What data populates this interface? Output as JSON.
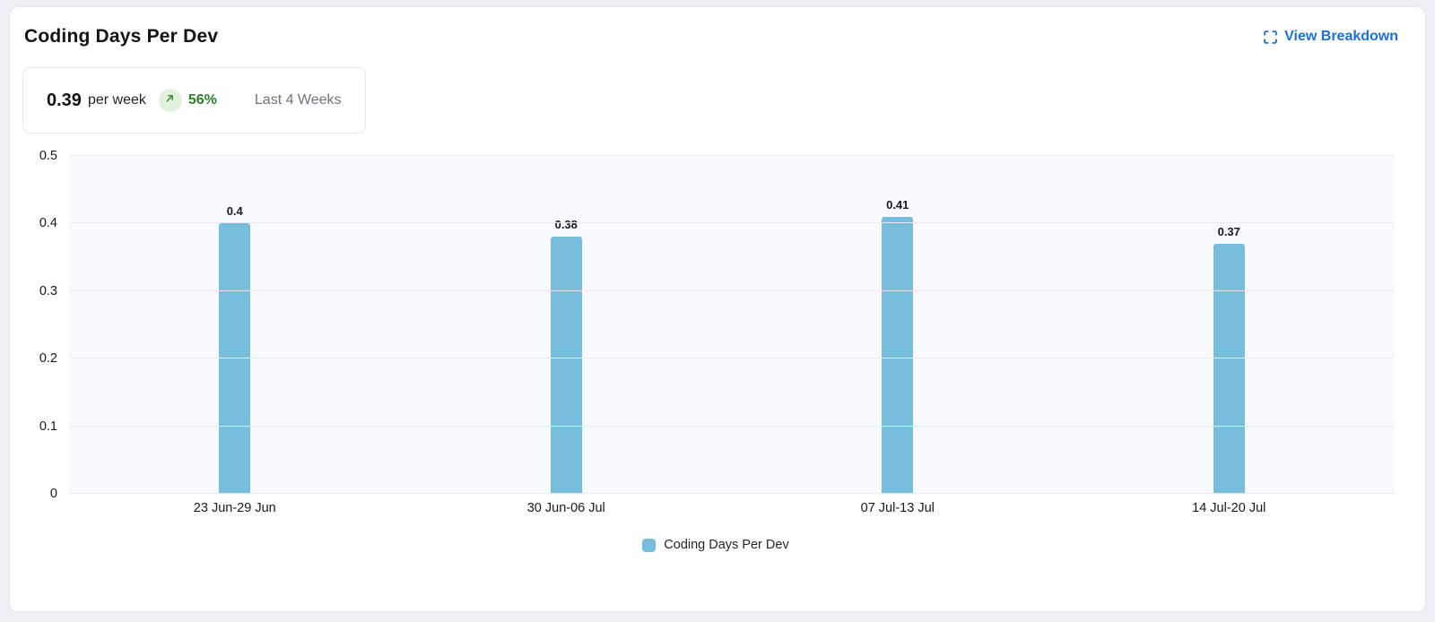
{
  "header": {
    "title": "Coding Days Per Dev",
    "view_breakdown_label": "View Breakdown"
  },
  "summary": {
    "value": "0.39",
    "unit": "per week",
    "trend_icon": "arrow-up-right",
    "change_pct": "56%",
    "period": "Last 4 Weeks"
  },
  "colors": {
    "bar": "#77bedd",
    "link_blue": "#1d6fd8",
    "badge_green_bg": "#e3f2df",
    "badge_green_fg": "#2e7d2a",
    "plot_bg": "#f9fafd",
    "gridline": "#e9ebf0",
    "card_border": "#e5e7ec"
  },
  "chart_data": {
    "type": "bar",
    "title": "Coding Days Per Dev",
    "categories": [
      "23 Jun-29 Jun",
      "30 Jun-06 Jul",
      "07 Jul-13 Jul",
      "14 Jul-20 Jul"
    ],
    "values": [
      0.4,
      0.38,
      0.41,
      0.37
    ],
    "value_labels": [
      "0.4",
      "0.38",
      "0.41",
      "0.37"
    ],
    "xlabel": "",
    "ylabel": "",
    "ylim": [
      0,
      0.5
    ],
    "yticks": [
      0,
      0.1,
      0.2,
      0.3,
      0.4,
      0.5
    ],
    "ytick_labels": [
      "0",
      "0.1",
      "0.2",
      "0.3",
      "0.4",
      "0.5"
    ],
    "grid": true,
    "legend_position": "bottom",
    "legend": [
      {
        "label": "Coding Days Per Dev",
        "color": "#77bedd"
      }
    ]
  }
}
